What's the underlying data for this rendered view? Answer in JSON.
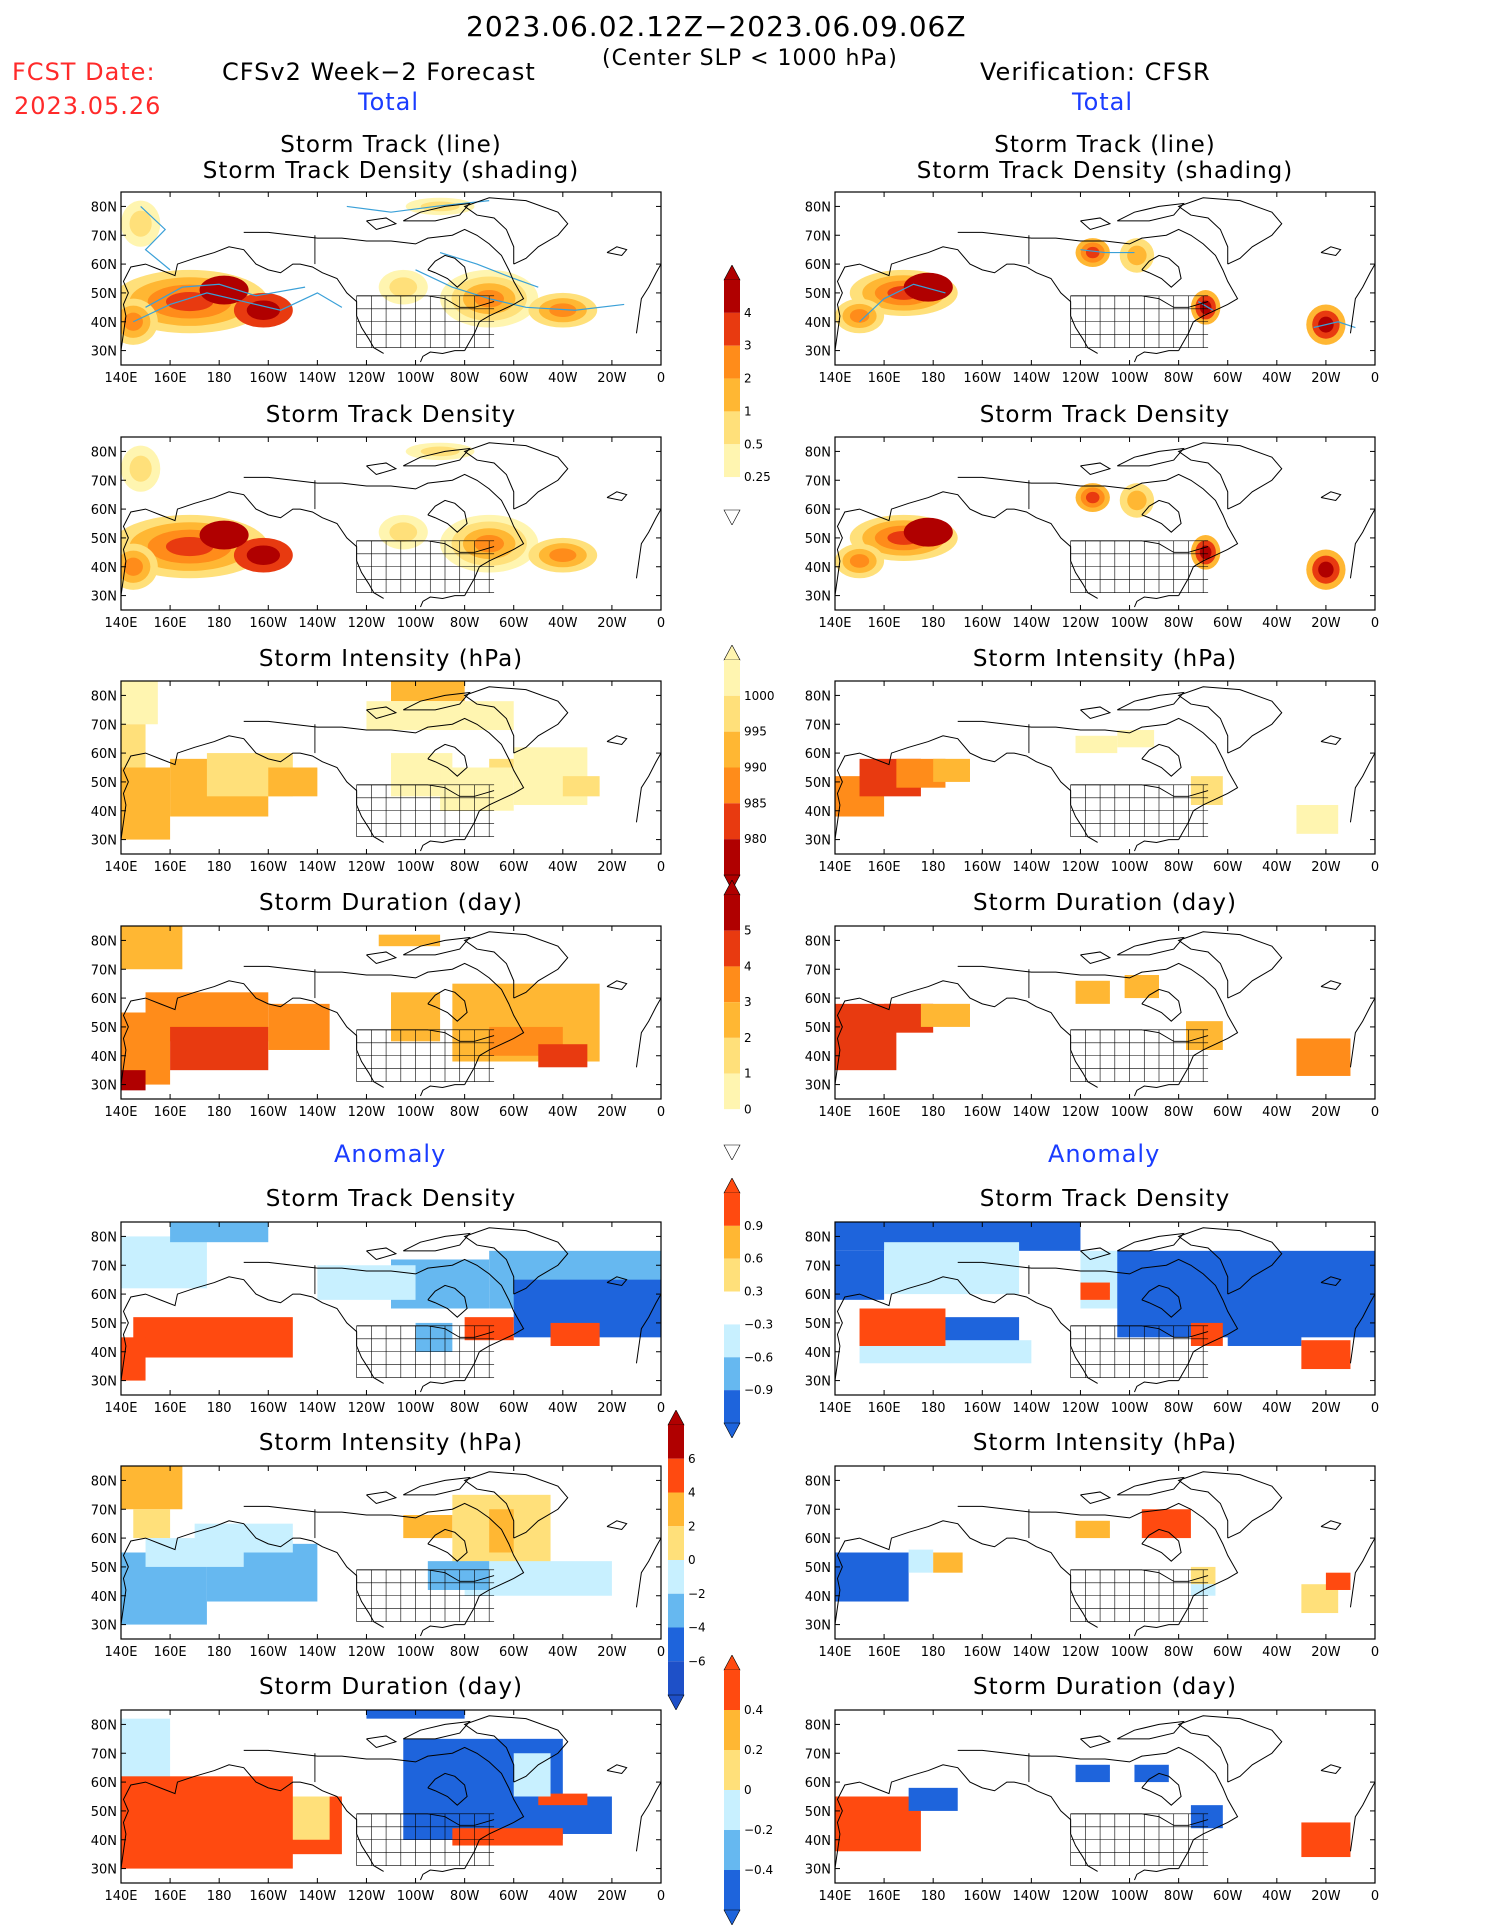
{
  "header": {
    "period": "2023.06.02.12Z−2023.06.09.06Z",
    "criterion": "(Center SLP < 1000 hPa)",
    "fcst_label": "FCST Date:",
    "fcst_date": "2023.05.26",
    "left_model": "CFSv2 Week−2 Forecast",
    "right_model": "Verification: CFSR",
    "total_label_left": "Total",
    "total_label_right": "Total",
    "anomaly_label_left": "Anomaly",
    "anomaly_label_right": "Anomaly"
  },
  "panel_titles": {
    "track_line": "Storm Track (line)",
    "track_shading": "Storm Track Density (shading)",
    "density": "Storm Track Density",
    "intensity": "Storm Intensity (hPa)",
    "duration": "Storm Duration (day)"
  },
  "axes": {
    "lon_ticks": [
      "140E",
      "160E",
      "180",
      "160W",
      "140W",
      "120W",
      "100W",
      "80W",
      "60W",
      "40W",
      "20W",
      "0"
    ],
    "lat_ticks": [
      "80N",
      "70N",
      "60N",
      "50N",
      "40N",
      "30N"
    ]
  },
  "colorbars": {
    "density_total": [
      "4",
      "3",
      "2",
      "1",
      "0.5",
      "0.25"
    ],
    "intensity_total": [
      "1000",
      "995",
      "990",
      "985",
      "980"
    ],
    "duration_total": [
      "5",
      "4",
      "3",
      "2",
      "1",
      "0"
    ],
    "density_anom": [
      "0.9",
      "0.6",
      "0.3",
      "−0.3",
      "−0.6",
      "−0.9"
    ],
    "intensity_anom": [
      "6",
      "4",
      "2",
      "0",
      "−2",
      "−4",
      "−6"
    ],
    "duration_anom": [
      "0.4",
      "0.2",
      "0",
      "−0.2",
      "−0.4"
    ]
  },
  "colors": {
    "total_scale": [
      "#fff5b0",
      "#ffe07a",
      "#ffb733",
      "#ff8c1a",
      "#e83a10",
      "#b00000"
    ],
    "anom_pos": [
      "#ffe07a",
      "#ffb733",
      "#ff4a10"
    ],
    "anom_neg": [
      "#c8f0ff",
      "#66b8f0",
      "#1e64dc"
    ],
    "track_line": "#3aa0d8"
  }
}
